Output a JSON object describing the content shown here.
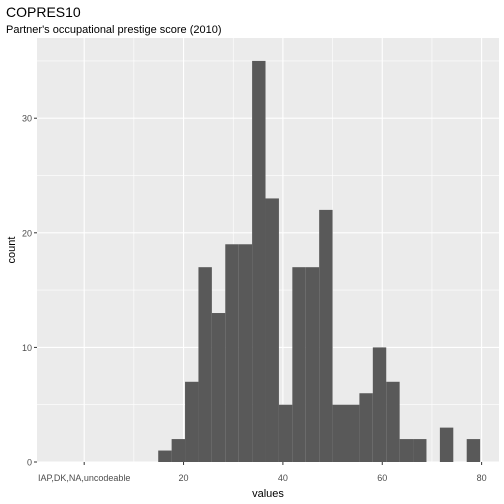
{
  "chart_data": {
    "type": "bar",
    "title": "COPRES10",
    "subtitle": "Partner's occupational prestige score (2010)",
    "xlabel": "values",
    "ylabel": "count",
    "xlim": [
      -9.5,
      83.5
    ],
    "ylim": [
      0,
      37
    ],
    "x_ticks": [
      {
        "value": 0,
        "label": "IAP,DK,NA,uncodeable"
      },
      {
        "value": 20,
        "label": "20"
      },
      {
        "value": 40,
        "label": "40"
      },
      {
        "value": 60,
        "label": "60"
      },
      {
        "value": 80,
        "label": "80"
      }
    ],
    "y_ticks": [
      0,
      10,
      20,
      30
    ],
    "bin_width": 2.7,
    "bins": [
      {
        "start": 14.9,
        "count": 1
      },
      {
        "start": 17.6,
        "count": 2
      },
      {
        "start": 20.3,
        "count": 7
      },
      {
        "start": 23.0,
        "count": 17
      },
      {
        "start": 25.7,
        "count": 13
      },
      {
        "start": 28.4,
        "count": 19
      },
      {
        "start": 31.1,
        "count": 19
      },
      {
        "start": 33.8,
        "count": 35
      },
      {
        "start": 36.5,
        "count": 23
      },
      {
        "start": 39.2,
        "count": 5
      },
      {
        "start": 41.9,
        "count": 17
      },
      {
        "start": 44.6,
        "count": 17
      },
      {
        "start": 47.3,
        "count": 22
      },
      {
        "start": 50.0,
        "count": 5
      },
      {
        "start": 52.7,
        "count": 5
      },
      {
        "start": 55.4,
        "count": 6
      },
      {
        "start": 58.1,
        "count": 10
      },
      {
        "start": 60.8,
        "count": 7
      },
      {
        "start": 63.5,
        "count": 2
      },
      {
        "start": 66.2,
        "count": 2
      },
      {
        "start": 68.9,
        "count": 0
      },
      {
        "start": 71.6,
        "count": 3
      },
      {
        "start": 74.3,
        "count": 0
      },
      {
        "start": 77.0,
        "count": 2
      }
    ],
    "grid": true,
    "colors": {
      "bar": "#595959",
      "panel": "#ebebeb",
      "gridline": "#ffffff",
      "text": "#000000",
      "tick_text": "#4d4d4d"
    }
  }
}
